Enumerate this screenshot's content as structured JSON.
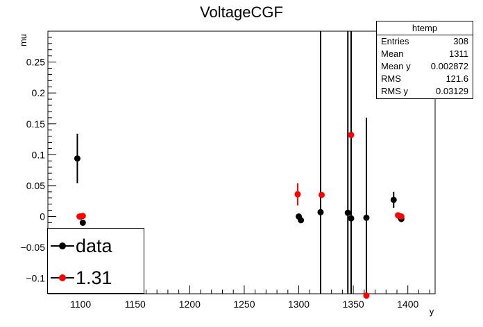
{
  "chart_data": {
    "type": "scatter",
    "title": "VoltageCGF",
    "xlabel": "y",
    "ylabel": "mu",
    "xlim": [
      1070,
      1425
    ],
    "ylim": [
      -0.125,
      0.3
    ],
    "x_ticks": [
      1100,
      1150,
      1200,
      1250,
      1300,
      1350,
      1400
    ],
    "y_ticks": [
      -0.1,
      -0.05,
      0,
      0.05,
      0.1,
      0.15,
      0.2,
      0.25
    ],
    "y_tick_labels": [
      "−0.1",
      "−0.05",
      "0",
      "0.05",
      "0.1",
      "0.15",
      "0.2",
      "0.25"
    ],
    "grid": false,
    "legend_position": "bottom-left",
    "series": [
      {
        "name": "data",
        "color": "#000000",
        "points": [
          {
            "x": 1097,
            "y": 0.094,
            "err": 0.04
          },
          {
            "x": 1100,
            "y": 0.0,
            "err": 0.0
          },
          {
            "x": 1102,
            "y": -0.01,
            "err": 0.0
          },
          {
            "x": 1300,
            "y": 0.0,
            "err": 0.0
          },
          {
            "x": 1302,
            "y": -0.006,
            "err": 0.0
          },
          {
            "x": 1320,
            "y": 0.007,
            "err": 0.5
          },
          {
            "x": 1345,
            "y": 0.006,
            "err": 0.5
          },
          {
            "x": 1348,
            "y": -0.003,
            "err": 0.5
          },
          {
            "x": 1362,
            "y": -0.002,
            "err": 0.162
          },
          {
            "x": 1387,
            "y": 0.027,
            "err": 0.013
          },
          {
            "x": 1392,
            "y": 0.001,
            "err": 0.0
          },
          {
            "x": 1394,
            "y": -0.004,
            "err": 0.0
          }
        ]
      },
      {
        "name": "1.31",
        "color": "#ff0000",
        "points": [
          {
            "x": 1099,
            "y": 0.0,
            "err": 0.0
          },
          {
            "x": 1102,
            "y": 0.001,
            "err": 0.0
          },
          {
            "x": 1299,
            "y": 0.036,
            "err": 0.018
          },
          {
            "x": 1321,
            "y": 0.035,
            "err": 0.0
          },
          {
            "x": 1348,
            "y": 0.132,
            "err": 0.0
          },
          {
            "x": 1362,
            "y": -0.128,
            "err": 0.0
          },
          {
            "x": 1391,
            "y": 0.002,
            "err": 0.0
          },
          {
            "x": 1394,
            "y": 0.0,
            "err": 0.0
          }
        ]
      }
    ]
  },
  "stats": {
    "title": "htemp",
    "rows": [
      {
        "label": "Entries",
        "value": "308"
      },
      {
        "label": "Mean",
        "value": "1311"
      },
      {
        "label": "Mean y",
        "value": "0.002872"
      },
      {
        "label": "RMS",
        "value": "121.6"
      },
      {
        "label": "RMS y",
        "value": "0.03129"
      }
    ]
  },
  "legend": {
    "entries": [
      {
        "label": "data",
        "color": "#000000"
      },
      {
        "label": "1.31",
        "color": "#ff0000"
      }
    ]
  }
}
